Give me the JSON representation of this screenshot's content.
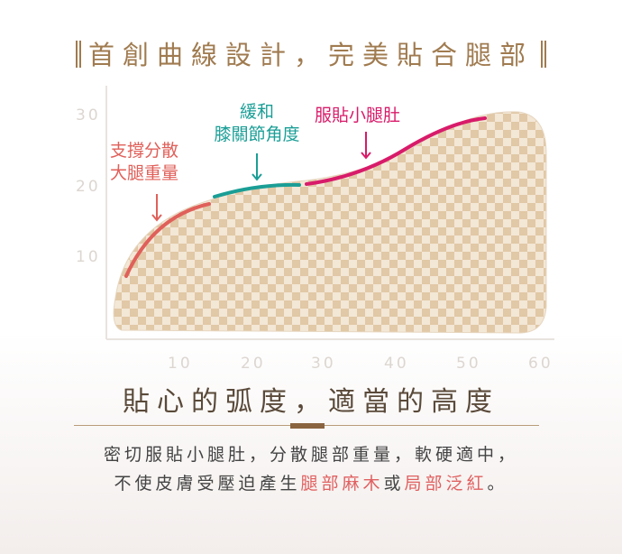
{
  "title": "首創曲線設計，完美貼合腿部",
  "axes": {
    "y_ticks": [
      "10",
      "20",
      "30"
    ],
    "x_ticks": [
      "10",
      "20",
      "30",
      "40",
      "50",
      "60"
    ]
  },
  "annotations": [
    {
      "text_lines": [
        "支撐分散",
        "大腿重量"
      ],
      "color": "#e0605a"
    },
    {
      "text_lines": [
        "緩和",
        "膝關節角度"
      ],
      "color": "#1a9e96"
    },
    {
      "text_lines": [
        "服貼小腿肚"
      ],
      "color": "#d81b6a"
    }
  ],
  "subtitle": "貼心的弧度，適當的高度",
  "description": {
    "line1": "密切服貼小腿肚，分散腿部重量，軟硬適中，",
    "line2_prefix": "不使皮膚受壓迫產生",
    "highlight1": "腿部麻木",
    "joiner": "或",
    "highlight2": "局部泛紅",
    "suffix": "。"
  },
  "colors": {
    "brand": "#a07b50",
    "highlight": "#e06060"
  }
}
